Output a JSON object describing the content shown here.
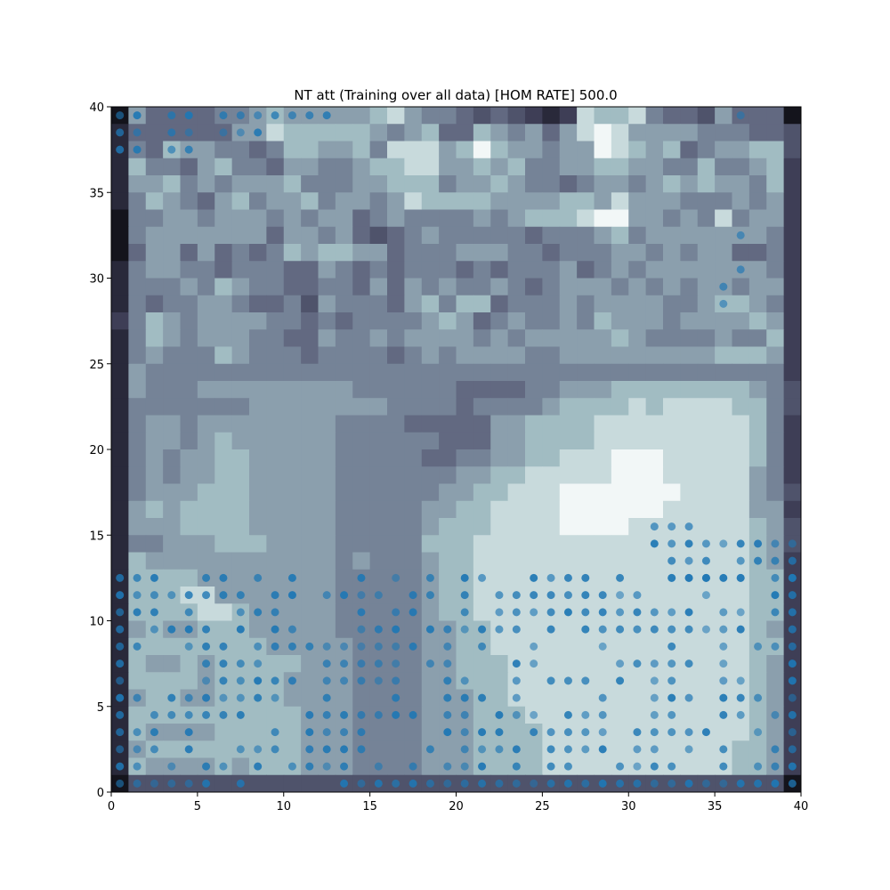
{
  "chart_data": {
    "type": "heatmap",
    "title": "NT att (Training over all data) [HOM RATE] 500.0",
    "xlabel": "",
    "ylabel": "",
    "xlim": [
      0,
      40
    ],
    "ylim": [
      0,
      40
    ],
    "x_ticks": [
      0,
      5,
      10,
      15,
      20,
      25,
      30,
      35,
      40
    ],
    "y_ticks": [
      0,
      5,
      10,
      15,
      20,
      25,
      30,
      35,
      40
    ],
    "x_tick_labels": [
      "0",
      "5",
      "10",
      "15",
      "20",
      "25",
      "30",
      "35",
      "40"
    ],
    "y_tick_labels": [
      "0",
      "5",
      "10",
      "15",
      "20",
      "25",
      "30",
      "35",
      "40"
    ],
    "grid": false,
    "colormap": "bone",
    "colormap_colors": [
      "#14141c",
      "#3a3a52",
      "#5a5f78",
      "#7d8da0",
      "#a6c2c6",
      "#f2f7f7"
    ],
    "point_color": "#1f77b4",
    "grid_size": 40,
    "rows_top_to_bottom": [
      "0644445567666667865543432128778544364440",
      "1444444668777776567447656468986666555443",
      "1547665545776675888679766566987674566773",
      "1755467554665567788667675566776655755672",
      "1667565666755566777566765545665676766572",
      "1576546756675665687777666677686665556562",
      "0556656665656645655556567778996656585662",
      "0566666664665643456555554555675666666652",
      "0466464545767766455566655455566565664452",
      "1566554555446545455545455564565666666652",
      "1555657655445546465655654566656565665662",
      "1545566544536555467577455565666655677652",
      "2576566665545455556764565565766656666762",
      "1576566655446556566665656666676555565572",
      "1565557655545555456566665566666666677762",
      "1655555555555555555555555555555555555552",
      "1655566666666655555544445566677777777653",
      "1555555566666666555545555677778788887753",
      "1566566666666555544444667777888888888752",
      "1566567666666555555444667777888888888752",
      "1565667766666555554455667788899988888752",
      "1565667766666555555566778888899988888652",
      "1566677766666555555667788899999998888653",
      "1676777766666555556677888899999988888662",
      "1666777766666555556777888899998888888763",
      "1556667776666555557778888888888888888763",
      "1766666666666565556778888888888888888762",
      "1777766666666555556778888888888888888772",
      "1777886666666555556778888888888888888772",
      "1777788766666555556778888888888888888772",
      "1676677766666555556677888888888888888762",
      "1777777776666655556677888888888888888772",
      "1766767777766655556677788888888888888762",
      "1777767777666655556677788888888888888762",
      "1677667777666655556667788888888888888762",
      "1777777777766655556667778888888888888762",
      "1766667777766655556667777888888888888762",
      "1677777777766655556667777888888888887762",
      "1766667677766655556667777888888888887762",
      "0333333333333333333333333333333333333330"
    ],
    "points": {
      "top_row_y": 39.5,
      "top_row_x": [
        0.5,
        1.5,
        3.5,
        4.5,
        6.5,
        7.5,
        8.5,
        9.5,
        10.5,
        11.5,
        12.5,
        36.5
      ],
      "upper_left": [
        [
          0.5,
          38.5
        ],
        [
          1.5,
          38.5
        ],
        [
          3.5,
          38.5
        ],
        [
          4.5,
          38.5
        ],
        [
          6.5,
          38.5
        ],
        [
          7.5,
          38.5
        ],
        [
          8.5,
          38.5
        ],
        [
          0.5,
          37.5
        ],
        [
          1.5,
          37.5
        ],
        [
          3.5,
          37.5
        ],
        [
          4.5,
          37.5
        ]
      ],
      "right_column": [
        [
          36.5,
          32.5
        ],
        [
          36.5,
          30.5
        ],
        [
          35.5,
          29.5
        ],
        [
          35.5,
          28.5
        ]
      ],
      "mid_right": [
        [
          31.5,
          15.5
        ],
        [
          32.5,
          15.5
        ],
        [
          33.5,
          15.5
        ],
        [
          31.5,
          14.5
        ],
        [
          32.5,
          14.5
        ],
        [
          33.5,
          14.5
        ],
        [
          34.5,
          14.5
        ],
        [
          35.5,
          14.5
        ],
        [
          36.5,
          14.5
        ],
        [
          37.5,
          14.5
        ],
        [
          38.5,
          14.5
        ],
        [
          39.5,
          14.5
        ],
        [
          32.5,
          13.5
        ],
        [
          33.5,
          13.5
        ],
        [
          34.5,
          13.5
        ],
        [
          36.5,
          13.5
        ],
        [
          37.5,
          13.5
        ],
        [
          38.5,
          13.5
        ],
        [
          39.5,
          13.5
        ],
        [
          32.5,
          12.5
        ],
        [
          33.5,
          12.5
        ],
        [
          34.5,
          12.5
        ],
        [
          35.5,
          12.5
        ],
        [
          36.5,
          12.5
        ],
        [
          38.5,
          12.5
        ],
        [
          39.5,
          12.5
        ]
      ],
      "bottom_row_y": 0.5,
      "bottom_row_x": [
        0.5,
        1.5,
        2.5,
        3.5,
        4.5,
        5.5,
        7.5,
        13.5,
        14.5,
        15.5,
        16.5,
        17.5,
        18.5,
        19.5,
        20.5,
        21.5,
        22.5,
        23.5,
        24.5,
        25.5,
        26.5,
        27.5,
        28.5,
        29.5,
        30.5,
        31.5,
        32.5,
        33.5,
        34.5,
        35.5,
        36.5,
        37.5,
        38.5,
        39.5
      ],
      "lower_band_rows": [
        1.5,
        2.5,
        3.5,
        4.5,
        5.5,
        6.5,
        7.5,
        8.5,
        9.5,
        10.5,
        11.5,
        12.5
      ]
    }
  }
}
